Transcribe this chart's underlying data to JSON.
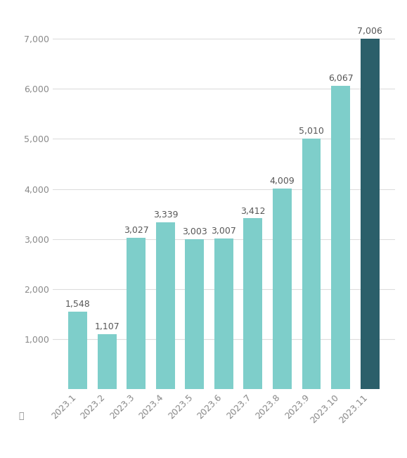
{
  "categories": [
    "2023.1",
    "2023.2",
    "2023.3",
    "2023.4",
    "2023.5",
    "2023.6",
    "2023.7",
    "2023.8",
    "2023.9",
    "2023.10",
    "2023.11"
  ],
  "values": [
    1548,
    1107,
    3027,
    3339,
    3003,
    3007,
    3412,
    4009,
    5010,
    6067,
    7006
  ],
  "bar_colors": [
    "#7ECECA",
    "#7ECECA",
    "#7ECECA",
    "#7ECECA",
    "#7ECECA",
    "#7ECECA",
    "#7ECECA",
    "#7ECECA",
    "#7ECECA",
    "#7ECECA",
    "#2B5F6A"
  ],
  "ylabel": "辆",
  "ylim": [
    0,
    7500
  ],
  "yticks": [
    1000,
    2000,
    3000,
    4000,
    5000,
    6000,
    7000
  ],
  "background_color": "#FFFFFF",
  "grid_color": "#DDDDDD",
  "label_fontsize": 9,
  "tick_fontsize": 9,
  "ylabel_fontsize": 9,
  "xlabel_rotation": 45
}
